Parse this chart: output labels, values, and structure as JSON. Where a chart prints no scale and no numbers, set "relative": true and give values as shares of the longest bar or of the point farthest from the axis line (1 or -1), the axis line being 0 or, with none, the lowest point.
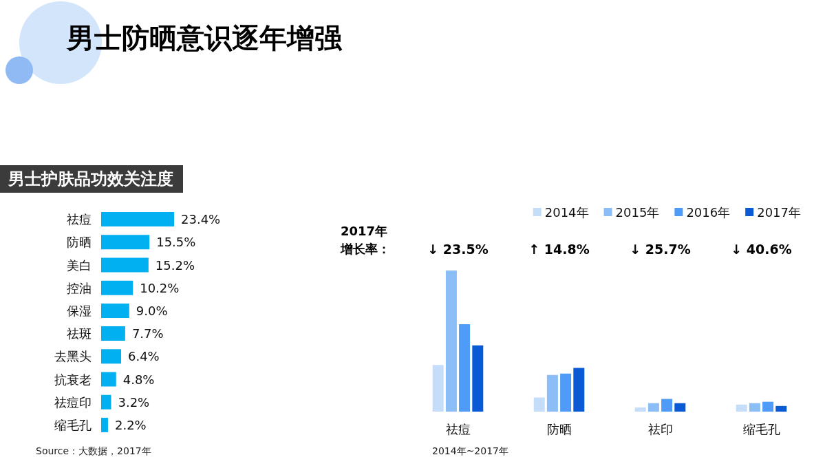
{
  "chart_data": [
    {
      "type": "bar",
      "orientation": "horizontal",
      "title": "男士防晒意识逐年增强",
      "subtitle": "男士护肤品功效关注度",
      "categories": [
        "祛痘",
        "防晒",
        "美白",
        "控油",
        "保湿",
        "祛斑",
        "去黑头",
        "抗衰老",
        "祛痘印",
        "缩毛孔"
      ],
      "values": [
        23.4,
        15.5,
        15.2,
        10.2,
        9.0,
        7.7,
        6.4,
        4.8,
        3.2,
        2.2
      ],
      "value_labels": [
        "23.4%",
        "15.5%",
        "15.2%",
        "10.2%",
        "9.0%",
        "7.7%",
        "6.4%",
        "4.8%",
        "3.2%",
        "2.2%"
      ],
      "color": "#00b0f0",
      "annotations": [
        "Source：大数据，2017年"
      ]
    },
    {
      "type": "bar",
      "relative": true,
      "legend": "top right",
      "categories": [
        "祛痘",
        "防晒",
        "祛印",
        "缩毛孔"
      ],
      "series": [
        {
          "name": "2014年",
          "color": "#c5ddf8",
          "values": [
            0.33,
            0.1,
            0.03,
            0.05
          ]
        },
        {
          "name": "2015年",
          "color": "#8bbdf7",
          "values": [
            1,
            0.26,
            0.06,
            0.06
          ]
        },
        {
          "name": "2016年",
          "color": "#4e9cf7",
          "values": [
            0.62,
            0.27,
            0.09,
            0.07
          ]
        },
        {
          "name": "2017年",
          "color": "#0a5ad6",
          "values": [
            0.47,
            0.31,
            0.06,
            0.04
          ]
        }
      ],
      "annotations": [
        "2017年增长率：",
        "↓ 23.5%",
        "↑ 14.8%",
        "↓ 25.7%",
        "↓ 40.6%",
        "2014年~2017年"
      ]
    }
  ]
}
